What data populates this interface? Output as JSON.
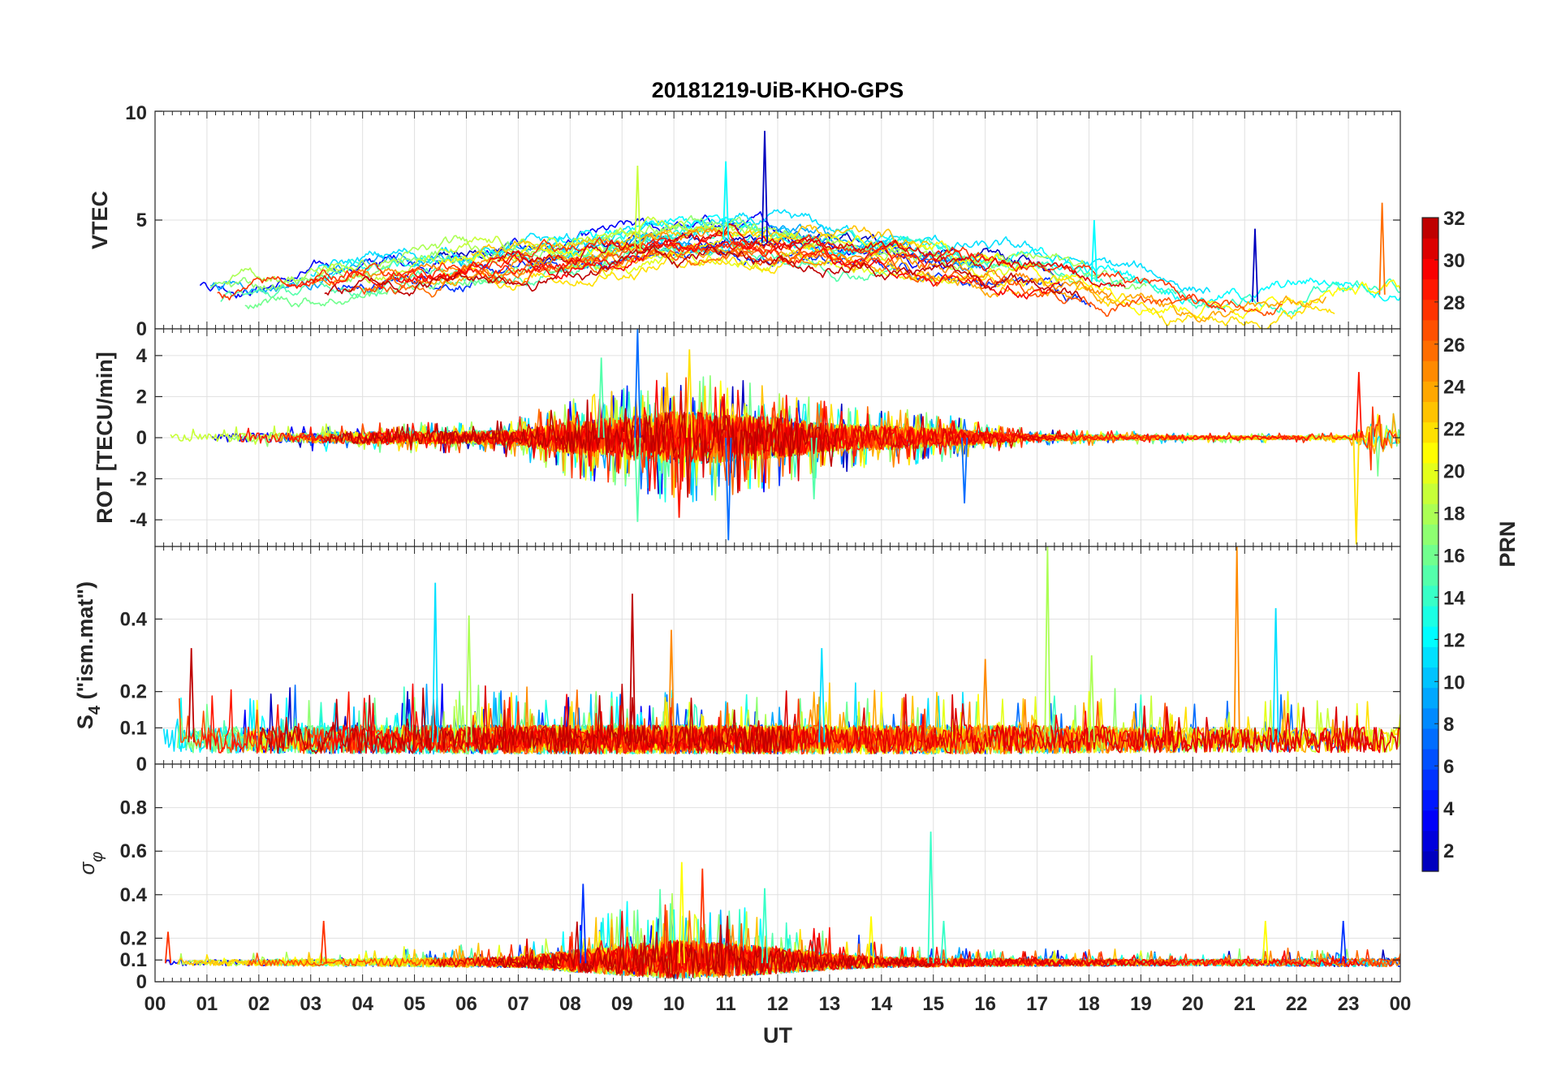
{
  "chart_data": {
    "type": "line",
    "title": "20181219-UiB-KHO-GPS",
    "xlabel": "UT",
    "x_tick_labels": [
      "00",
      "01",
      "02",
      "03",
      "04",
      "05",
      "06",
      "07",
      "08",
      "09",
      "10",
      "11",
      "12",
      "13",
      "14",
      "15",
      "16",
      "17",
      "18",
      "19",
      "20",
      "21",
      "22",
      "23",
      "00"
    ],
    "xlim": [
      0,
      24
    ],
    "grid": true,
    "panels": [
      {
        "ylabel": "VTEC",
        "ylim": [
          0,
          10
        ],
        "yticks": [
          0,
          5,
          10
        ],
        "ytick_labels": [
          "0",
          "5",
          "10"
        ],
        "style": "trend",
        "envelope": {
          "x": [
            0,
            2,
            4,
            6,
            7,
            8,
            9,
            10,
            11,
            12,
            13,
            14,
            15,
            16,
            17,
            18,
            20,
            21,
            22,
            23,
            24
          ],
          "y": [
            1.6,
            1.7,
            2.4,
            3.0,
            3.1,
            3.3,
            3.6,
            3.9,
            4.1,
            3.9,
            3.6,
            3.4,
            3.2,
            2.9,
            2.6,
            2.2,
            1.4,
            1.2,
            1.4,
            1.7,
            1.5
          ]
        },
        "noise": 0.35,
        "spread": 1.2,
        "peaks": [
          {
            "x": 11.75,
            "y": 9.1
          },
          {
            "x": 11.0,
            "y": 7.7
          },
          {
            "x": 9.3,
            "y": 7.5
          },
          {
            "x": 23.65,
            "y": 5.8
          },
          {
            "x": 21.2,
            "y": 4.6
          },
          {
            "x": 18.1,
            "y": 5.0
          }
        ]
      },
      {
        "ylabel": "ROT [TECU/min]",
        "ylim": [
          -5.3,
          5.3
        ],
        "yticks": [
          -4,
          -2,
          0,
          2,
          4
        ],
        "ytick_labels": [
          "-4",
          "-2",
          "0",
          "2",
          "4"
        ],
        "style": "symmetric",
        "baseline": 0,
        "amplitude": {
          "x": [
            0,
            4,
            6,
            7,
            8,
            9,
            10,
            11,
            12,
            13,
            14,
            15,
            16,
            17,
            18,
            20,
            22,
            23,
            23.5,
            24
          ],
          "y": [
            0.15,
            0.3,
            0.3,
            0.4,
            0.8,
            1.0,
            1.3,
            1.2,
            1.0,
            0.7,
            0.6,
            0.5,
            0.3,
            0.15,
            0.15,
            0.1,
            0.1,
            0.1,
            0.8,
            0.4
          ]
        },
        "peaks": [
          {
            "x": 9.3,
            "y": 5.3
          },
          {
            "x": 9.3,
            "y": -4.1
          },
          {
            "x": 10.3,
            "y": 4.3
          },
          {
            "x": 10.1,
            "y": -3.9
          },
          {
            "x": 11.05,
            "y": -5.0
          },
          {
            "x": 8.6,
            "y": 3.9
          },
          {
            "x": 23.15,
            "y": -5.2
          },
          {
            "x": 23.2,
            "y": 3.2
          },
          {
            "x": 15.6,
            "y": -3.2
          },
          {
            "x": 12.7,
            "y": -3.0
          }
        ]
      },
      {
        "ylabel": "S4 (\"ism.mat\")",
        "ylabel_main": "S",
        "ylabel_sub": "4",
        "ylabel_rest": " (\"ism.mat\")",
        "ylim": [
          0,
          0.6
        ],
        "yticks": [
          0,
          0.1,
          0.2,
          0.4
        ],
        "ytick_labels": [
          "0",
          "0.1",
          "0.2",
          "0.4"
        ],
        "style": "positive",
        "baseline": 0.06,
        "amplitude": {
          "x": [
            0,
            4,
            8,
            12,
            16,
            20,
            24
          ],
          "y": [
            0.035,
            0.04,
            0.04,
            0.04,
            0.04,
            0.035,
            0.035
          ]
        },
        "peaks": [
          {
            "x": 5.4,
            "y": 0.5
          },
          {
            "x": 17.2,
            "y": 0.6
          },
          {
            "x": 20.85,
            "y": 0.6
          },
          {
            "x": 9.2,
            "y": 0.47
          },
          {
            "x": 21.6,
            "y": 0.43
          },
          {
            "x": 6.05,
            "y": 0.41
          },
          {
            "x": 9.95,
            "y": 0.37
          },
          {
            "x": 0.7,
            "y": 0.32
          },
          {
            "x": 12.85,
            "y": 0.32
          },
          {
            "x": 18.05,
            "y": 0.3
          },
          {
            "x": 16.0,
            "y": 0.29
          }
        ]
      },
      {
        "ylabel": "σφ",
        "ylabel_main": "σ",
        "ylabel_sub": "φ",
        "ylim": [
          0,
          1
        ],
        "yticks": [
          0,
          0.1,
          0.2,
          0.4,
          0.6,
          0.8
        ],
        "ytick_labels": [
          "0",
          "0.1",
          "0.2",
          "0.4",
          "0.6",
          "0.8"
        ],
        "style": "positive",
        "baseline": 0.085,
        "amplitude": {
          "x": [
            0,
            4,
            7,
            8,
            9,
            10,
            11,
            12,
            13,
            14,
            16,
            20,
            24
          ],
          "y": [
            0.012,
            0.018,
            0.025,
            0.05,
            0.07,
            0.09,
            0.08,
            0.06,
            0.04,
            0.025,
            0.018,
            0.015,
            0.02
          ]
        },
        "peaks": [
          {
            "x": 14.95,
            "y": 0.69
          },
          {
            "x": 10.15,
            "y": 0.55
          },
          {
            "x": 10.55,
            "y": 0.52
          },
          {
            "x": 8.25,
            "y": 0.45
          },
          {
            "x": 11.75,
            "y": 0.43
          },
          {
            "x": 13.8,
            "y": 0.3
          },
          {
            "x": 3.25,
            "y": 0.28
          },
          {
            "x": 22.9,
            "y": 0.28
          },
          {
            "x": 15.2,
            "y": 0.28
          },
          {
            "x": 21.4,
            "y": 0.28
          },
          {
            "x": 0.25,
            "y": 0.23
          }
        ]
      }
    ],
    "colorbar": {
      "label": "PRN",
      "range": [
        1,
        32
      ],
      "tick_values": [
        2,
        4,
        6,
        8,
        10,
        12,
        14,
        16,
        18,
        20,
        22,
        24,
        26,
        28,
        30,
        32
      ],
      "tick_labels": [
        "2",
        "4",
        "6",
        "8",
        "10",
        "12",
        "14",
        "16",
        "18",
        "20",
        "22",
        "24",
        "26",
        "28",
        "30",
        "32"
      ],
      "colormap": "jet"
    },
    "series_prn": [
      1,
      3,
      5,
      7,
      9,
      10,
      11,
      12,
      13,
      14,
      15,
      16,
      17,
      18,
      19,
      20,
      21,
      22,
      23,
      24,
      25,
      26,
      27,
      28,
      29,
      30,
      31,
      32
    ]
  }
}
